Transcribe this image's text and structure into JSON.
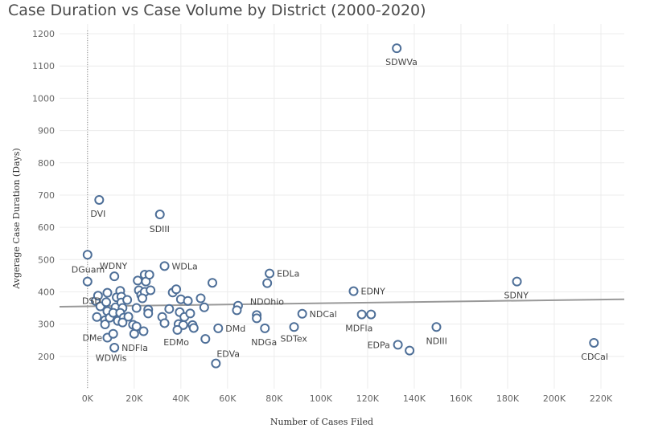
{
  "chart_data": {
    "type": "scatter",
    "title": "Case Duration vs Case Volume by District (2000-2020)",
    "xlabel": "Number of Cases Filed",
    "ylabel": "Avgerage Case Duration (Days)",
    "xlim": [
      -12000,
      230000
    ],
    "ylim": [
      100,
      1230
    ],
    "x_ticks": [
      0,
      20000,
      40000,
      60000,
      80000,
      100000,
      120000,
      140000,
      160000,
      180000,
      200000,
      220000
    ],
    "x_tick_labels": [
      "0K",
      "20K",
      "40K",
      "60K",
      "80K",
      "100K",
      "120K",
      "140K",
      "160K",
      "180K",
      "200K",
      "220K"
    ],
    "y_ticks": [
      200,
      300,
      400,
      500,
      600,
      700,
      800,
      900,
      1000,
      1100,
      1200
    ],
    "y_tick_labels": [
      "200",
      "300",
      "400",
      "500",
      "600",
      "700",
      "800",
      "900",
      "1000",
      "1100",
      "1200"
    ],
    "grid": true,
    "colors": {
      "marker": "#4e6f98",
      "trend": "#999999",
      "grid": "#ececec",
      "zero_line": "#888888"
    },
    "trend_line": {
      "x": [
        -12000,
        230000
      ],
      "y": [
        354,
        377
      ]
    },
    "points": [
      {
        "x": 132500,
        "y": 1155,
        "label": "SDWVa"
      },
      {
        "x": 5000,
        "y": 685,
        "label": "DVI"
      },
      {
        "x": 31000,
        "y": 640,
        "label": "SDIII"
      },
      {
        "x": 0,
        "y": 515,
        "label": "DGuam"
      },
      {
        "x": 33000,
        "y": 480,
        "label": "WDLa"
      },
      {
        "x": 78000,
        "y": 457,
        "label": "EDLa"
      },
      {
        "x": 114000,
        "y": 402,
        "label": "EDNY"
      },
      {
        "x": 184000,
        "y": 432,
        "label": "SDNY"
      },
      {
        "x": 64500,
        "y": 357,
        "label": "NDOhio"
      },
      {
        "x": 92000,
        "y": 332,
        "label": "NDCal"
      },
      {
        "x": 121500,
        "y": 330,
        "label": "MDFla"
      },
      {
        "x": 56000,
        "y": 287,
        "label": "DMd"
      },
      {
        "x": 76000,
        "y": 287,
        "label": "NDGa"
      },
      {
        "x": 88500,
        "y": 291,
        "label": "SDTex"
      },
      {
        "x": 8500,
        "y": 258,
        "label": "DMe"
      },
      {
        "x": 11500,
        "y": 227,
        "label": "NDFla"
      },
      {
        "x": 50500,
        "y": 254,
        "label": "EDMo"
      },
      {
        "x": 55000,
        "y": 178,
        "label": "EDVa"
      },
      {
        "x": 133000,
        "y": 236,
        "label": "EDPa"
      },
      {
        "x": 149500,
        "y": 291,
        "label": "NDIII"
      },
      {
        "x": 217000,
        "y": 242,
        "label": "CDCal"
      },
      {
        "x": 11000,
        "y": 270,
        "label": "WDWis"
      },
      {
        "x": 24500,
        "y": 453,
        "label": "WDNY"
      },
      {
        "x": 3500,
        "y": 372,
        "label": "DSD"
      },
      {
        "x": 0,
        "y": 432,
        "label": ""
      },
      {
        "x": 4500,
        "y": 388,
        "label": ""
      },
      {
        "x": 4000,
        "y": 322,
        "label": ""
      },
      {
        "x": 5500,
        "y": 355,
        "label": ""
      },
      {
        "x": 8500,
        "y": 397,
        "label": ""
      },
      {
        "x": 8000,
        "y": 368,
        "label": ""
      },
      {
        "x": 8500,
        "y": 340,
        "label": ""
      },
      {
        "x": 7500,
        "y": 312,
        "label": ""
      },
      {
        "x": 7500,
        "y": 299,
        "label": ""
      },
      {
        "x": 9500,
        "y": 320,
        "label": ""
      },
      {
        "x": 11500,
        "y": 448,
        "label": ""
      },
      {
        "x": 12500,
        "y": 383,
        "label": ""
      },
      {
        "x": 12000,
        "y": 352,
        "label": ""
      },
      {
        "x": 11000,
        "y": 335,
        "label": ""
      },
      {
        "x": 13000,
        "y": 310,
        "label": ""
      },
      {
        "x": 14000,
        "y": 403,
        "label": ""
      },
      {
        "x": 14500,
        "y": 385,
        "label": ""
      },
      {
        "x": 14500,
        "y": 367,
        "label": ""
      },
      {
        "x": 15000,
        "y": 350,
        "label": ""
      },
      {
        "x": 14000,
        "y": 335,
        "label": ""
      },
      {
        "x": 15500,
        "y": 320,
        "label": ""
      },
      {
        "x": 15000,
        "y": 305,
        "label": ""
      },
      {
        "x": 17000,
        "y": 375,
        "label": ""
      },
      {
        "x": 17500,
        "y": 323,
        "label": ""
      },
      {
        "x": 19500,
        "y": 298,
        "label": ""
      },
      {
        "x": 20000,
        "y": 270,
        "label": ""
      },
      {
        "x": 21500,
        "y": 435,
        "label": ""
      },
      {
        "x": 22000,
        "y": 405,
        "label": ""
      },
      {
        "x": 23000,
        "y": 390,
        "label": ""
      },
      {
        "x": 21000,
        "y": 350,
        "label": ""
      },
      {
        "x": 21000,
        "y": 293,
        "label": ""
      },
      {
        "x": 24000,
        "y": 278,
        "label": ""
      },
      {
        "x": 25000,
        "y": 432,
        "label": ""
      },
      {
        "x": 26500,
        "y": 453,
        "label": ""
      },
      {
        "x": 24500,
        "y": 400,
        "label": ""
      },
      {
        "x": 23500,
        "y": 380,
        "label": ""
      },
      {
        "x": 27000,
        "y": 405,
        "label": ""
      },
      {
        "x": 26000,
        "y": 345,
        "label": ""
      },
      {
        "x": 26000,
        "y": 333,
        "label": ""
      },
      {
        "x": 32000,
        "y": 322,
        "label": ""
      },
      {
        "x": 33000,
        "y": 303,
        "label": ""
      },
      {
        "x": 35000,
        "y": 347,
        "label": ""
      },
      {
        "x": 36500,
        "y": 398,
        "label": ""
      },
      {
        "x": 38000,
        "y": 408,
        "label": ""
      },
      {
        "x": 40000,
        "y": 377,
        "label": ""
      },
      {
        "x": 39500,
        "y": 337,
        "label": ""
      },
      {
        "x": 41500,
        "y": 322,
        "label": ""
      },
      {
        "x": 39000,
        "y": 300,
        "label": ""
      },
      {
        "x": 41000,
        "y": 297,
        "label": ""
      },
      {
        "x": 38500,
        "y": 282,
        "label": ""
      },
      {
        "x": 43000,
        "y": 372,
        "label": ""
      },
      {
        "x": 44000,
        "y": 333,
        "label": ""
      },
      {
        "x": 45000,
        "y": 297,
        "label": ""
      },
      {
        "x": 45500,
        "y": 288,
        "label": ""
      },
      {
        "x": 48500,
        "y": 380,
        "label": ""
      },
      {
        "x": 50000,
        "y": 352,
        "label": ""
      },
      {
        "x": 53500,
        "y": 428,
        "label": ""
      },
      {
        "x": 64000,
        "y": 343,
        "label": ""
      },
      {
        "x": 72500,
        "y": 328,
        "label": ""
      },
      {
        "x": 72500,
        "y": 318,
        "label": ""
      },
      {
        "x": 77000,
        "y": 427,
        "label": ""
      },
      {
        "x": 117500,
        "y": 330,
        "label": ""
      },
      {
        "x": 138000,
        "y": 218,
        "label": ""
      }
    ],
    "labels": [
      {
        "text": "SDWVa",
        "x": 132500,
        "y": 1155,
        "dx": -14,
        "dy": 21
      },
      {
        "text": "DVI",
        "x": 5000,
        "y": 685,
        "dx": -11,
        "dy": 21
      },
      {
        "text": "SDIII",
        "x": 31000,
        "y": 640,
        "dx": -13,
        "dy": 22
      },
      {
        "text": "DGuam",
        "x": 0,
        "y": 515,
        "dx": -20,
        "dy": 22
      },
      {
        "text": "WDNY",
        "x": 24500,
        "y": 453,
        "dx": -56,
        "dy": -7
      },
      {
        "text": "WDLa",
        "x": 33000,
        "y": 480,
        "dx": 9,
        "dy": 4
      },
      {
        "text": "EDLa",
        "x": 78000,
        "y": 457,
        "dx": 9,
        "dy": 4
      },
      {
        "text": "DSD",
        "x": 3500,
        "y": 372,
        "dx": -17,
        "dy": 4
      },
      {
        "text": "EDNY",
        "x": 114000,
        "y": 402,
        "dx": 9,
        "dy": 4
      },
      {
        "text": "SDNY",
        "x": 184000,
        "y": 432,
        "dx": -16,
        "dy": 21
      },
      {
        "text": "NDOhio",
        "x": 64500,
        "y": 357,
        "dx": 15,
        "dy": -1
      },
      {
        "text": "NDCal",
        "x": 92000,
        "y": 332,
        "dx": 9,
        "dy": 4
      },
      {
        "text": "MDFla",
        "x": 121500,
        "y": 330,
        "dx": -32,
        "dy": 21
      },
      {
        "text": "DMd",
        "x": 56000,
        "y": 287,
        "dx": 9,
        "dy": 4
      },
      {
        "text": "NDGa",
        "x": 76000,
        "y": 287,
        "dx": -17,
        "dy": 21
      },
      {
        "text": "SDTex",
        "x": 88500,
        "y": 291,
        "dx": -17,
        "dy": 18
      },
      {
        "text": "DMe",
        "x": 8500,
        "y": 258,
        "dx": -31,
        "dy": 4
      },
      {
        "text": "NDFla",
        "x": 11500,
        "y": 227,
        "dx": 9,
        "dy": 4
      },
      {
        "text": "EDMo",
        "x": 50500,
        "y": 254,
        "dx": -52,
        "dy": 8
      },
      {
        "text": "EDVa",
        "x": 55000,
        "y": 178,
        "dx": 1,
        "dy": -8
      },
      {
        "text": "EDPa",
        "x": 133000,
        "y": 236,
        "dx": -38,
        "dy": 4
      },
      {
        "text": "NDIII",
        "x": 149500,
        "y": 291,
        "dx": -13,
        "dy": 21
      },
      {
        "text": "CDCal",
        "x": 217000,
        "y": 242,
        "dx": -16,
        "dy": 21
      },
      {
        "text": "WDWis",
        "x": 11000,
        "y": 270,
        "dx": -22,
        "dy": 34
      }
    ]
  }
}
